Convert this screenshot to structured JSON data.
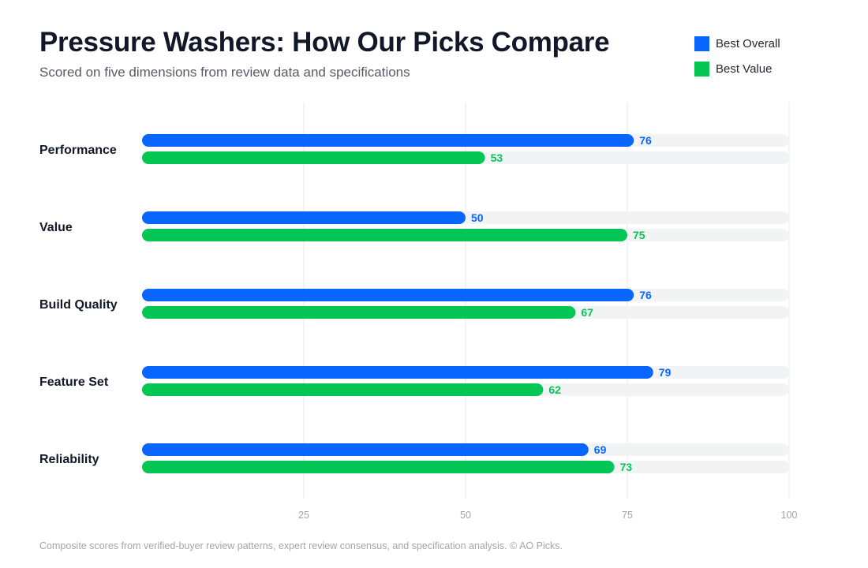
{
  "header": {
    "title": "Pressure Washers: How Our Picks Compare",
    "subtitle": "Scored on five dimensions from review data and specifications"
  },
  "footer": {
    "text": "Composite scores from verified-buyer review patterns, expert review consensus, and specification analysis. © AO Picks."
  },
  "colors": {
    "best_overall": "#0866ff",
    "best_value": "#04c655",
    "track": "#f2f3f5",
    "gridline": "#e6e7e9",
    "tick_text": "#a0a5ad",
    "category_text": "#111827"
  },
  "chart_data": {
    "type": "bar",
    "orientation": "horizontal",
    "title": "Pressure Washers: How Our Picks Compare",
    "subtitle": "Scored on five dimensions from review data and specifications",
    "categories": [
      "Performance",
      "Value",
      "Build Quality",
      "Feature Set",
      "Reliability"
    ],
    "series": [
      {
        "name": "Best Overall",
        "color": "#0866ff",
        "values": [
          76,
          50,
          76,
          79,
          69
        ]
      },
      {
        "name": "Best Value",
        "color": "#04c655",
        "values": [
          53,
          75,
          67,
          62,
          73
        ]
      }
    ],
    "xlim": [
      0,
      100
    ],
    "xticks": [
      25,
      50,
      75,
      100
    ],
    "grid": true,
    "legend": "top-right",
    "data_labels": true
  }
}
